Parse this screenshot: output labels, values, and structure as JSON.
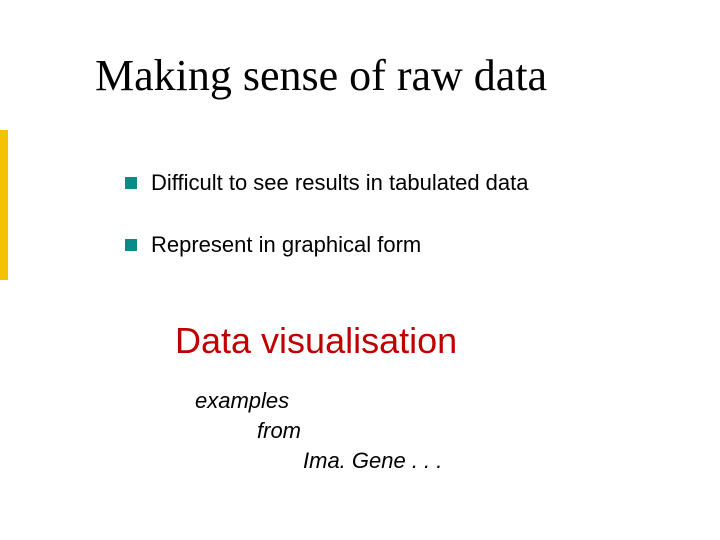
{
  "slide": {
    "title": "Making sense of raw data",
    "title_font": "Times New Roman",
    "title_fontsize": 44,
    "title_color": "#000000",
    "bullets": [
      {
        "text": "Difficult to see results in tabulated data"
      },
      {
        "text": "Represent in graphical form"
      }
    ],
    "bullet_square_color": "#0b8a8a",
    "bullet_fontsize": 22,
    "subtitle": "Data visualisation",
    "subtitle_color": "#c00000",
    "subtitle_fontsize": 36,
    "examples": [
      "examples",
      "from",
      "Ima. Gene . . ."
    ],
    "examples_fontstyle": "italic",
    "examples_fontsize": 22,
    "accent_bar_color": "#f4c200",
    "background_color": "#ffffff"
  }
}
